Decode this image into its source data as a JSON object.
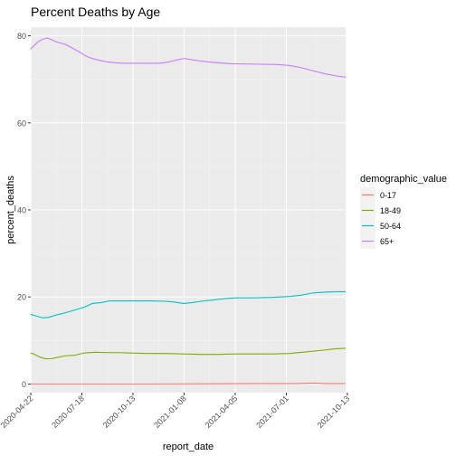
{
  "chart_data": {
    "type": "line",
    "title": "Percent Deaths by Age",
    "xlabel": "report_date",
    "ylabel": "percent_deaths",
    "x_ticks": [
      "2020-04-22",
      "2020-07-18",
      "2020-10-13",
      "2021-01-08",
      "2021-04-05",
      "2021-07-01",
      "2021-10-13"
    ],
    "x_tick_days": [
      0,
      87,
      174,
      261,
      348,
      435,
      539
    ],
    "x_range_days": [
      0,
      536
    ],
    "y_ticks": [
      0,
      20,
      40,
      60,
      80
    ],
    "ylim": [
      -2,
      82
    ],
    "grid": true,
    "legend": {
      "title": "demographic_value",
      "position": "right"
    },
    "series": [
      {
        "name": "0-17",
        "color": "#F8766D",
        "points": [
          [
            0,
            0
          ],
          [
            100,
            0
          ],
          [
            200,
            0
          ],
          [
            300,
            0.05
          ],
          [
            400,
            0.1
          ],
          [
            450,
            0.1
          ],
          [
            485,
            0.2
          ],
          [
            500,
            0.1
          ],
          [
            536,
            0.1
          ]
        ]
      },
      {
        "name": "18-49",
        "color": "#7CAE00",
        "points": [
          [
            0,
            7.1
          ],
          [
            5,
            6.9
          ],
          [
            15,
            6.2
          ],
          [
            25,
            5.8
          ],
          [
            35,
            5.8
          ],
          [
            45,
            6.1
          ],
          [
            60,
            6.5
          ],
          [
            75,
            6.6
          ],
          [
            90,
            7.1
          ],
          [
            110,
            7.3
          ],
          [
            130,
            7.2
          ],
          [
            150,
            7.2
          ],
          [
            170,
            7.1
          ],
          [
            200,
            7.0
          ],
          [
            230,
            7.0
          ],
          [
            260,
            6.9
          ],
          [
            290,
            6.8
          ],
          [
            320,
            6.8
          ],
          [
            350,
            6.9
          ],
          [
            380,
            6.9
          ],
          [
            410,
            6.9
          ],
          [
            440,
            7.0
          ],
          [
            470,
            7.4
          ],
          [
            500,
            7.8
          ],
          [
            520,
            8.1
          ],
          [
            536,
            8.2
          ]
        ]
      },
      {
        "name": "50-64",
        "color": "#00BFC4",
        "points": [
          [
            0,
            16.0
          ],
          [
            10,
            15.6
          ],
          [
            20,
            15.2
          ],
          [
            30,
            15.3
          ],
          [
            45,
            15.9
          ],
          [
            60,
            16.4
          ],
          [
            75,
            17.0
          ],
          [
            90,
            17.6
          ],
          [
            105,
            18.5
          ],
          [
            120,
            18.7
          ],
          [
            135,
            19.1
          ],
          [
            150,
            19.1
          ],
          [
            170,
            19.1
          ],
          [
            200,
            19.1
          ],
          [
            230,
            19.0
          ],
          [
            245,
            18.8
          ],
          [
            260,
            18.5
          ],
          [
            275,
            18.7
          ],
          [
            290,
            19.0
          ],
          [
            310,
            19.3
          ],
          [
            330,
            19.6
          ],
          [
            350,
            19.8
          ],
          [
            380,
            19.8
          ],
          [
            410,
            19.9
          ],
          [
            440,
            20.1
          ],
          [
            460,
            20.4
          ],
          [
            480,
            20.9
          ],
          [
            500,
            21.1
          ],
          [
            520,
            21.2
          ],
          [
            536,
            21.2
          ]
        ]
      },
      {
        "name": "65+",
        "color": "#C77CFF",
        "points": [
          [
            0,
            77.0
          ],
          [
            6,
            77.8
          ],
          [
            12,
            78.6
          ],
          [
            20,
            79.2
          ],
          [
            28,
            79.5
          ],
          [
            36,
            79.1
          ],
          [
            44,
            78.6
          ],
          [
            52,
            78.3
          ],
          [
            60,
            78.0
          ],
          [
            68,
            77.4
          ],
          [
            76,
            76.8
          ],
          [
            84,
            76.2
          ],
          [
            92,
            75.5
          ],
          [
            100,
            75.0
          ],
          [
            110,
            74.6
          ],
          [
            120,
            74.3
          ],
          [
            130,
            74.0
          ],
          [
            145,
            73.8
          ],
          [
            160,
            73.7
          ],
          [
            180,
            73.7
          ],
          [
            200,
            73.7
          ],
          [
            220,
            73.7
          ],
          [
            235,
            74.0
          ],
          [
            250,
            74.5
          ],
          [
            262,
            74.8
          ],
          [
            275,
            74.5
          ],
          [
            290,
            74.2
          ],
          [
            310,
            73.9
          ],
          [
            340,
            73.6
          ],
          [
            380,
            73.5
          ],
          [
            420,
            73.4
          ],
          [
            440,
            73.2
          ],
          [
            460,
            72.7
          ],
          [
            480,
            72.0
          ],
          [
            500,
            71.3
          ],
          [
            520,
            70.8
          ],
          [
            536,
            70.5
          ]
        ]
      }
    ]
  }
}
